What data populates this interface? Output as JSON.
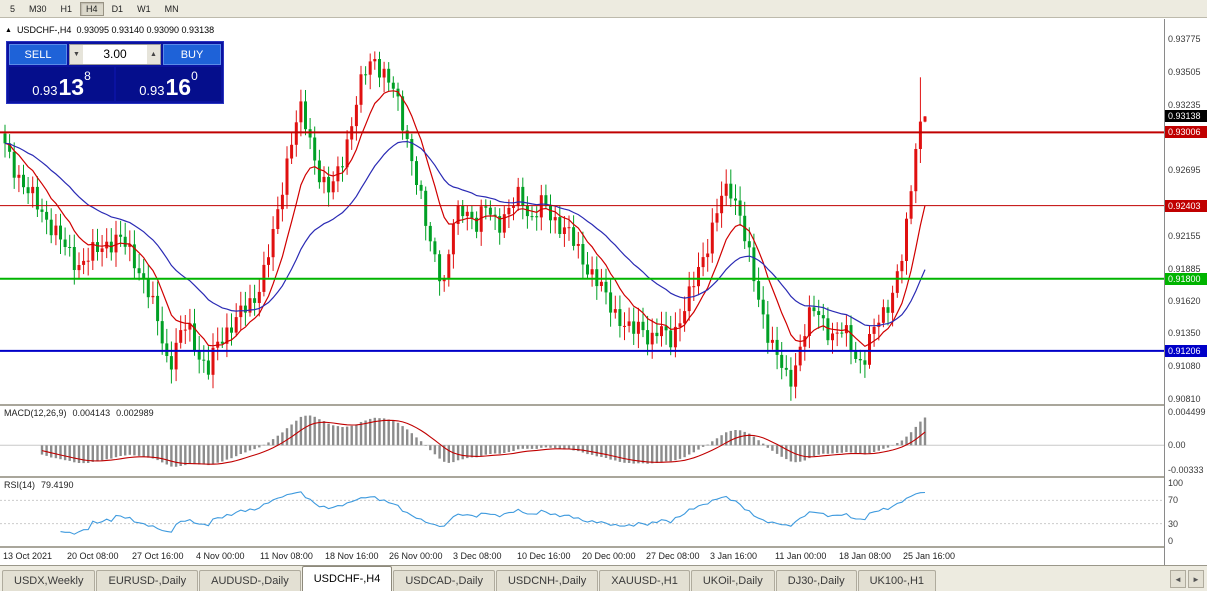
{
  "toolbar": {
    "timeframes": [
      "5",
      "M30",
      "H1",
      "H4",
      "D1",
      "W1",
      "MN"
    ],
    "active": "H4"
  },
  "chart": {
    "symbol_label": "USDCHF-,H4",
    "ohlc": "0.93095 0.93140 0.93090 0.93138"
  },
  "trade_panel": {
    "sell_label": "SELL",
    "buy_label": "BUY",
    "volume": "3.00",
    "sell_price": {
      "prefix": "0.93",
      "big": "13",
      "sup": "8"
    },
    "buy_price": {
      "prefix": "0.93",
      "big": "16",
      "sup": "0"
    }
  },
  "price_axis": {
    "ticks": [
      "0.93775",
      "0.93505",
      "0.93235",
      "0.92695",
      "0.92155",
      "0.91885",
      "0.91620",
      "0.91350",
      "0.91080",
      "0.90810"
    ],
    "current_price_tag": {
      "label": "0.93138",
      "color": "#000000"
    },
    "level_tags": [
      {
        "label": "0.93006",
        "color": "#C00000"
      },
      {
        "label": "0.92403",
        "color": "#C00000"
      },
      {
        "label": "0.91800",
        "color": "#00B400"
      },
      {
        "label": "0.91206",
        "color": "#0000C8"
      }
    ]
  },
  "time_axis": {
    "labels": [
      "13 Oct 2021",
      "20 Oct 08:00",
      "27 Oct 16:00",
      "4 Nov 00:00",
      "11 Nov 08:00",
      "18 Nov 16:00",
      "26 Nov 00:00",
      "3 Dec 08:00",
      "10 Dec 16:00",
      "20 Dec 00:00",
      "27 Dec 08:00",
      "3 Jan 16:00",
      "11 Jan 00:00",
      "18 Jan 08:00",
      "25 Jan 16:00"
    ]
  },
  "tabs": {
    "items": [
      "USDX,Weekly",
      "EURUSD-,Daily",
      "AUDUSD-,Daily",
      "USDCHF-,H4",
      "USDCAD-,Daily",
      "USDCNH-,Daily",
      "XAUUSD-,H1",
      "UKOil-,Daily",
      "DJ30-,Daily",
      "UK100-,H1"
    ],
    "active_index": 3,
    "scroll_left": "◄",
    "scroll_right": "►"
  },
  "chart_data": {
    "type": "candlestick",
    "symbol": "USDCHF-",
    "timeframe": "H4",
    "y_range": [
      0.90769,
      0.9394
    ],
    "current_price": 0.93138,
    "last_ohlc": {
      "open": 0.93095,
      "high": 0.9314,
      "low": 0.9309,
      "close": 0.93138
    },
    "num_candles": 200,
    "price_levels": [
      {
        "value": 0.93006,
        "color": "#C00000",
        "width": 2
      },
      {
        "value": 0.92403,
        "color": "#C00000",
        "width": 1
      },
      {
        "value": 0.918,
        "color": "#00B400",
        "width": 2
      },
      {
        "value": 0.91206,
        "color": "#0000C8",
        "width": 2
      }
    ],
    "price_path": [
      [
        0.0,
        0.9288
      ],
      [
        0.008,
        0.9275
      ],
      [
        0.02,
        0.9258
      ],
      [
        0.035,
        0.924
      ],
      [
        0.05,
        0.9225
      ],
      [
        0.065,
        0.9205
      ],
      [
        0.08,
        0.9192
      ],
      [
        0.095,
        0.92
      ],
      [
        0.11,
        0.921
      ],
      [
        0.125,
        0.9212
      ],
      [
        0.14,
        0.9198
      ],
      [
        0.155,
        0.917
      ],
      [
        0.168,
        0.914
      ],
      [
        0.178,
        0.9108
      ],
      [
        0.188,
        0.9128
      ],
      [
        0.198,
        0.9143
      ],
      [
        0.21,
        0.912
      ],
      [
        0.22,
        0.9102
      ],
      [
        0.232,
        0.9128
      ],
      [
        0.245,
        0.9142
      ],
      [
        0.258,
        0.9152
      ],
      [
        0.27,
        0.9162
      ],
      [
        0.282,
        0.9188
      ],
      [
        0.294,
        0.9222
      ],
      [
        0.304,
        0.9268
      ],
      [
        0.314,
        0.9305
      ],
      [
        0.322,
        0.9318
      ],
      [
        0.332,
        0.9292
      ],
      [
        0.344,
        0.9262
      ],
      [
        0.354,
        0.925
      ],
      [
        0.364,
        0.9272
      ],
      [
        0.374,
        0.93
      ],
      [
        0.384,
        0.9332
      ],
      [
        0.394,
        0.9355
      ],
      [
        0.402,
        0.9362
      ],
      [
        0.412,
        0.9348
      ],
      [
        0.424,
        0.9332
      ],
      [
        0.436,
        0.93
      ],
      [
        0.448,
        0.9258
      ],
      [
        0.458,
        0.9222
      ],
      [
        0.468,
        0.9198
      ],
      [
        0.478,
        0.9174
      ],
      [
        0.488,
        0.9228
      ],
      [
        0.5,
        0.9242
      ],
      [
        0.512,
        0.9222
      ],
      [
        0.524,
        0.924
      ],
      [
        0.536,
        0.9226
      ],
      [
        0.548,
        0.9234
      ],
      [
        0.56,
        0.9252
      ],
      [
        0.572,
        0.9228
      ],
      [
        0.584,
        0.9242
      ],
      [
        0.596,
        0.923
      ],
      [
        0.61,
        0.922
      ],
      [
        0.625,
        0.92
      ],
      [
        0.64,
        0.9182
      ],
      [
        0.655,
        0.9162
      ],
      [
        0.668,
        0.9148
      ],
      [
        0.68,
        0.9135
      ],
      [
        0.692,
        0.9142
      ],
      [
        0.702,
        0.913
      ],
      [
        0.712,
        0.9138
      ],
      [
        0.722,
        0.9128
      ],
      [
        0.732,
        0.9145
      ],
      [
        0.744,
        0.9165
      ],
      [
        0.756,
        0.9192
      ],
      [
        0.768,
        0.922
      ],
      [
        0.778,
        0.9245
      ],
      [
        0.788,
        0.9255
      ],
      [
        0.798,
        0.9238
      ],
      [
        0.808,
        0.92
      ],
      [
        0.818,
        0.9165
      ],
      [
        0.83,
        0.9135
      ],
      [
        0.842,
        0.911
      ],
      [
        0.852,
        0.9092
      ],
      [
        0.862,
        0.9118
      ],
      [
        0.872,
        0.9145
      ],
      [
        0.882,
        0.9155
      ],
      [
        0.892,
        0.9142
      ],
      [
        0.902,
        0.913
      ],
      [
        0.912,
        0.9138
      ],
      [
        0.922,
        0.9122
      ],
      [
        0.932,
        0.9108
      ],
      [
        0.942,
        0.9132
      ],
      [
        0.95,
        0.9148
      ],
      [
        0.958,
        0.9158
      ],
      [
        0.966,
        0.917
      ],
      [
        0.974,
        0.9192
      ],
      [
        0.981,
        0.9228
      ],
      [
        0.988,
        0.9278
      ],
      [
        0.994,
        0.9325
      ],
      [
        0.998,
        0.9348
      ],
      [
        1.0,
        0.93138
      ]
    ],
    "colors": {
      "bull": "#E01010",
      "bear": "#00A025",
      "ma_fast": "#D00000",
      "ma_slow": "#2A2AB4",
      "macd_hist": "#8C8C8C",
      "macd_signal": "#C00000",
      "rsi": "#3E9ADE"
    },
    "indicators": {
      "macd": {
        "label": "MACD(12,26,9)",
        "value1": "0.004143",
        "value2": "0.002989",
        "axis_ticks": [
          "0.004499",
          "0.00",
          "-0.00333"
        ],
        "axis_values": [
          0.004499,
          0,
          -0.00333
        ]
      },
      "rsi": {
        "label": "RSI(14)",
        "value": "79.4190",
        "axis_ticks": [
          "100",
          "70",
          "30",
          "0"
        ],
        "axis_values": [
          100,
          70,
          30,
          0
        ],
        "levels": [
          70,
          30
        ]
      }
    }
  }
}
